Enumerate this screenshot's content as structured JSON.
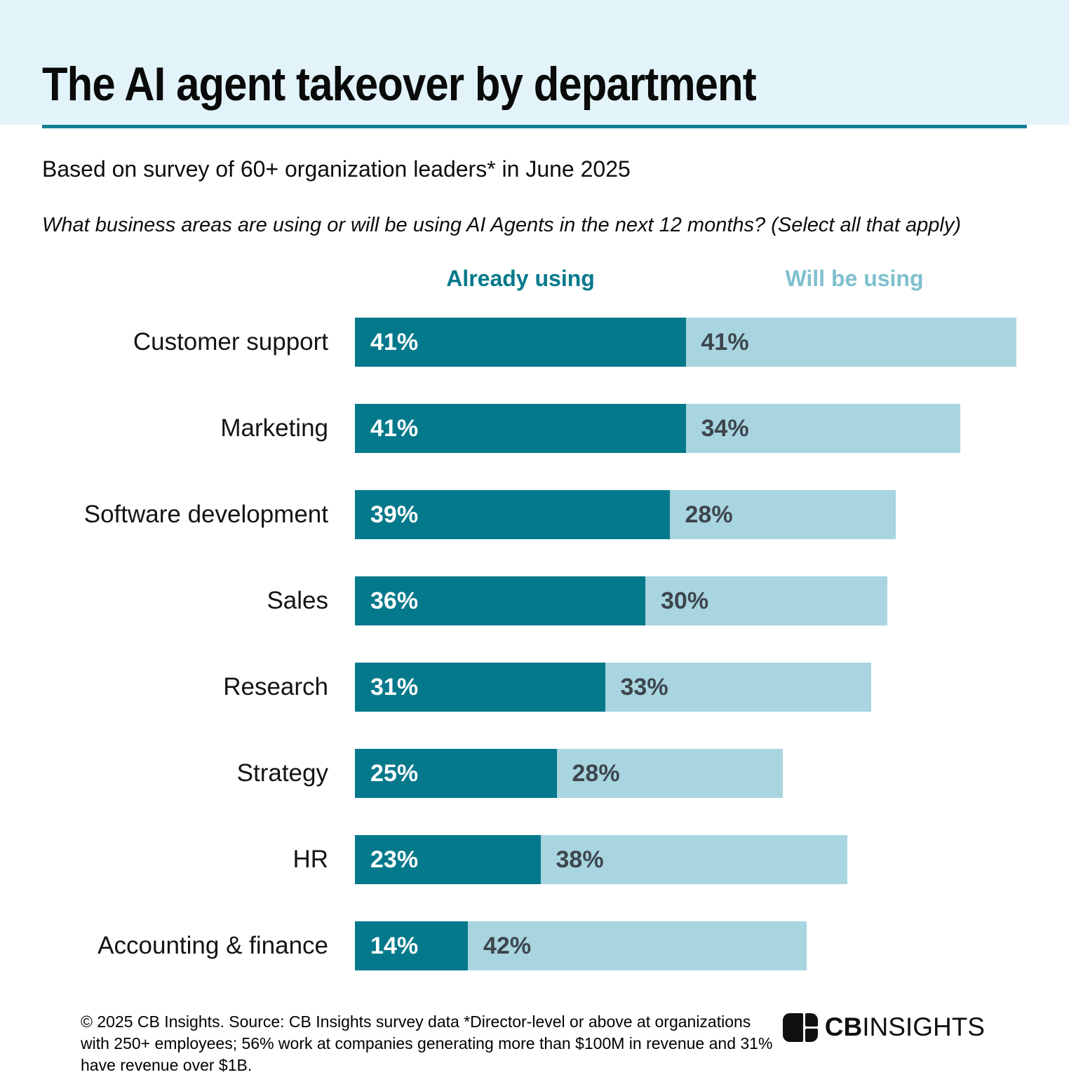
{
  "header": {
    "title": "The AI agent takeover by department",
    "subtitle": "Based on survey of 60+ organization leaders* in June 2025",
    "question": "What business areas are using or will be using AI Agents in the next 12 months? (Select all that apply)"
  },
  "legend": {
    "already": "Already using",
    "will": "Will be using"
  },
  "chart_data": {
    "type": "bar",
    "orientation": "horizontal",
    "stacked": true,
    "title": "The AI agent takeover by department",
    "categories": [
      "Customer support",
      "Marketing",
      "Software development",
      "Sales",
      "Research",
      "Strategy",
      "HR",
      "Accounting & finance"
    ],
    "series": [
      {
        "name": "Already using",
        "color": "#05798c",
        "values": [
          41,
          41,
          39,
          36,
          31,
          25,
          23,
          14
        ]
      },
      {
        "name": "Will be using",
        "color": "#a8d5df",
        "values": [
          41,
          34,
          28,
          30,
          33,
          28,
          38,
          42
        ]
      }
    ],
    "value_suffix": "%",
    "xlim": [
      0,
      82
    ],
    "grid": false,
    "legend_position": "top",
    "value_labels": "inside-start"
  },
  "footer": {
    "source": "© 2025 CB Insights. Source: CB Insights survey data *Director-level or above at organizations with 250+ employees; 56% work at companies generating more than $100M in revenue and 31% have revenue over $1B.",
    "logo_cb": "CB",
    "logo_insights": "INSIGHTS"
  },
  "colors": {
    "banner_bg": "#e2f4f9",
    "rule": "#157f91",
    "already": "#05798c",
    "will": "#a8d5df",
    "will_legend_text": "#7fc0cd",
    "value_dark_text": "#3d454c"
  }
}
